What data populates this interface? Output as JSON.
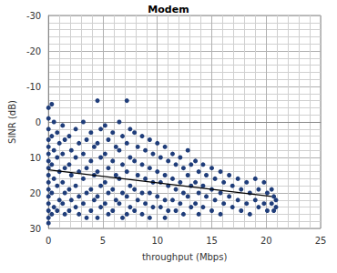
{
  "chart_data": {
    "type": "scatter",
    "title": "Modem",
    "x_label": "throughput (Mbps)",
    "y_label": "SINR (dB)",
    "xlim": [
      0,
      25
    ],
    "xticks": [
      0,
      5,
      10,
      15,
      20,
      25
    ],
    "ylim": [
      30,
      -30
    ],
    "yticks": [
      30,
      20,
      10,
      0,
      -10,
      -20,
      -30
    ],
    "grid": true,
    "series": [
      {
        "type": "scatter",
        "color": "#1f3d7a",
        "marker": "circle",
        "x": [
          0,
          0,
          0,
          0,
          0,
          0,
          0,
          0,
          0,
          0,
          0,
          0,
          0,
          0,
          0,
          0,
          0.3,
          0.5,
          0.3,
          0.5,
          0.3,
          0.5,
          0.3,
          0.5,
          0.3,
          0.8,
          1.0,
          0.8,
          1.0,
          0.8,
          1.0,
          0.8,
          1.3,
          1.5,
          1.3,
          1.5,
          1.3,
          1.5,
          1.3,
          1.5,
          1.9,
          2.1,
          1.9,
          2.1,
          1.9,
          2.1,
          1.9,
          2.5,
          2.8,
          2.5,
          2.8,
          2.5,
          2.8,
          2.5,
          2.8,
          3.2,
          3.5,
          3.2,
          3.5,
          3.2,
          3.5,
          3.2,
          3.5,
          3.9,
          4.2,
          3.9,
          4.2,
          3.9,
          4.2,
          3.9,
          4.5,
          4.8,
          4.5,
          4.8,
          4.5,
          4.8,
          4.5,
          4.8,
          4.5,
          5.2,
          5.5,
          5.2,
          5.5,
          5.2,
          5.5,
          5.2,
          5.5,
          5.9,
          6.2,
          5.9,
          6.2,
          5.9,
          6.2,
          5.9,
          6.5,
          6.8,
          6.5,
          6.8,
          6.5,
          6.8,
          6.5,
          6.8,
          7.2,
          7.5,
          7.2,
          7.5,
          7.2,
          7.5,
          7.2,
          7.5,
          7.2,
          7.9,
          8.2,
          7.9,
          8.2,
          7.9,
          8.2,
          7.9,
          8.6,
          8.9,
          8.6,
          8.9,
          8.6,
          8.9,
          8.6,
          9.3,
          9.6,
          9.3,
          9.6,
          9.3,
          9.6,
          9.3,
          10,
          10.3,
          10,
          10.3,
          10,
          10.3,
          10.7,
          11,
          10.7,
          11,
          10.7,
          11,
          10.7,
          11.4,
          11.7,
          11.4,
          11.7,
          11.4,
          11.7,
          12.1,
          12.4,
          12.1,
          12.4,
          12.1,
          12.4,
          12.8,
          13.1,
          12.8,
          13.1,
          12.8,
          13.1,
          13.5,
          13.8,
          13.5,
          13.8,
          13.5,
          13.8,
          14.2,
          14.5,
          14.2,
          14.5,
          14.2,
          15,
          15.3,
          15,
          15.3,
          15,
          15.8,
          16.1,
          15.8,
          16.1,
          15.8,
          16.6,
          16.9,
          16.6,
          16.9,
          17.4,
          17.7,
          17.4,
          17.7,
          18.2,
          18.5,
          18.2,
          18.5,
          19,
          19.3,
          19,
          19.3,
          19.8,
          20.1,
          19.8,
          20.1,
          20.5,
          20.7,
          20.5,
          20.7,
          20.9,
          20.9
        ],
        "values": [
          -4,
          -1,
          2,
          5,
          7,
          9,
          11,
          13,
          15,
          17,
          19,
          21,
          23,
          25,
          27,
          28.5,
          -5,
          0,
          4,
          8,
          12,
          16,
          20,
          24,
          26,
          3,
          6,
          10,
          14,
          18,
          22,
          25,
          1,
          5,
          9,
          13,
          17,
          20,
          23,
          26,
          4,
          8,
          12,
          15,
          19,
          22,
          25,
          2,
          6,
          10,
          14,
          18,
          21,
          24,
          26,
          0,
          5,
          9,
          13,
          16,
          20,
          23,
          27,
          3,
          7,
          11,
          15,
          19,
          22,
          25,
          -6,
          2,
          6,
          10,
          14,
          18,
          21,
          24,
          27,
          1,
          5,
          9,
          13,
          17,
          20,
          23,
          26,
          3,
          7,
          11,
          15,
          19,
          22,
          25,
          0,
          4,
          8,
          12,
          16,
          20,
          23,
          27,
          -6,
          2,
          6,
          10,
          14,
          18,
          21,
          24,
          26,
          3,
          7,
          11,
          15,
          19,
          22,
          25,
          4,
          8,
          12,
          16,
          20,
          23,
          26,
          5,
          9,
          13,
          17,
          20,
          24,
          27,
          6,
          10,
          14,
          17,
          21,
          24,
          7,
          11,
          15,
          18,
          22,
          25,
          27,
          9,
          12,
          16,
          19,
          22,
          25,
          10,
          13,
          17,
          20,
          23,
          26,
          8,
          12,
          15,
          18,
          21,
          24,
          11,
          14,
          17,
          20,
          23,
          26,
          12,
          15,
          18,
          21,
          24,
          13,
          16,
          19,
          22,
          25,
          14,
          17,
          20,
          23,
          26,
          15,
          18,
          21,
          24,
          16,
          19,
          22,
          25,
          17,
          20,
          23,
          26,
          16,
          19,
          22,
          24,
          17,
          20,
          23,
          25,
          19,
          21,
          23,
          25,
          22,
          24
        ]
      },
      {
        "type": "line",
        "color": "#000000",
        "line_style": "solid",
        "x": [
          0,
          20.5
        ],
        "values": [
          13.5,
          21
        ]
      }
    ]
  }
}
